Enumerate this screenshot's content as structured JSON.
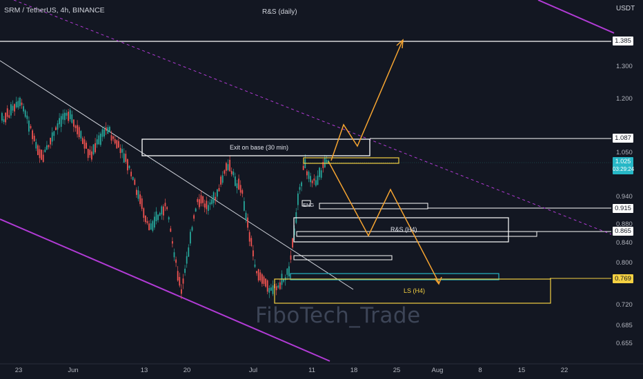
{
  "header": {
    "symbol_line": "SRM / TetherUS, 4h, BINANCE",
    "center_title": "R&S (daily)",
    "unit": "USDT"
  },
  "watermark": "FiboTech_Trade",
  "price_tags": {
    "top": "1.385",
    "exit": "1.087",
    "current_price": "1.025",
    "current_timer": "03:29:24",
    "mid1": "0.915",
    "mid2": "0.865",
    "ls": "0.769"
  },
  "box_labels": {
    "exit": "Exit on base (30 min)",
    "eng": "ENG",
    "rs_h4": "R&S (H4)",
    "ls_h4": "LS (H4)"
  },
  "colors": {
    "background": "#131722",
    "bull": "#26a69a",
    "bear": "#ef5350",
    "channel": "#b23bd6",
    "zone_yellow": "#f5d142",
    "arrow_orange": "#f7a531",
    "cyan": "#26b7c6"
  },
  "chart_data": {
    "type": "candlestick",
    "title": "SRM / TetherUS, 4h, BINANCE",
    "y_ticks": [
      "1.300",
      "1.200",
      "1.050",
      "0.940",
      "0.880",
      "0.840",
      "0.800",
      "0.720",
      "0.685",
      "0.655"
    ],
    "x_ticks": [
      "23",
      "Jun",
      "13",
      "20",
      "Jul",
      "11",
      "18",
      "25",
      "Aug",
      "8",
      "15",
      "22"
    ],
    "price_levels": [
      1.385,
      1.087,
      1.025,
      0.915,
      0.865,
      0.769
    ],
    "annotations": [
      "Exit on base (30 min)",
      "ENG",
      "R&S (H4)",
      "LS (H4)",
      "R&S (daily)"
    ],
    "projection": "zigzag up then down toward 0.769, and up toward 1.385"
  }
}
